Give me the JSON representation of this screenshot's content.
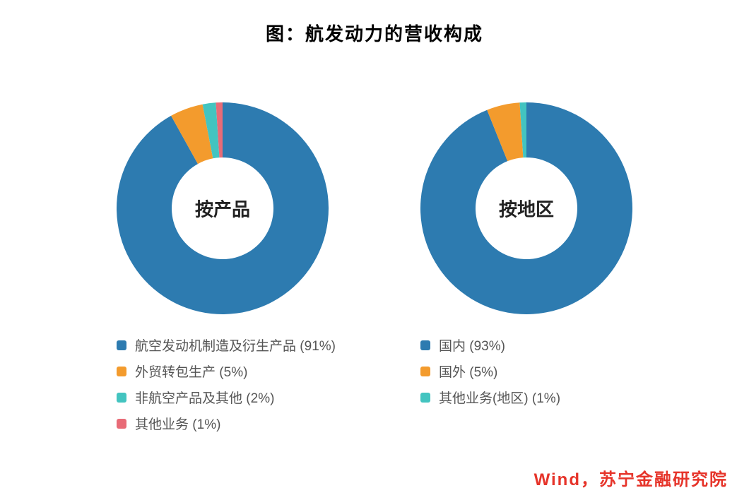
{
  "title": "图：航发动力的营收构成",
  "title_fontsize": 26,
  "background_color": "#ffffff",
  "source": {
    "text": "Wind，苏宁金融研究院",
    "color": "#e6342a",
    "fontsize": 24
  },
  "donut": {
    "outer_radius": 150,
    "inner_radius": 72,
    "start_angle_deg": -90,
    "center_label_fontsize": 26,
    "legend_fontsize": 19
  },
  "charts": [
    {
      "center_label": "按产品",
      "slices": [
        {
          "label": "航空发动机制造及衍生产品",
          "value": 91,
          "color": "#2d7bb0"
        },
        {
          "label": "外贸转包生产",
          "value": 5,
          "color": "#f39b2d"
        },
        {
          "label": "非航空产品及其他",
          "value": 2,
          "color": "#43c4c0"
        },
        {
          "label": "其他业务",
          "value": 1,
          "color": "#e86b77"
        }
      ]
    },
    {
      "center_label": "按地区",
      "slices": [
        {
          "label": "国内",
          "value": 93,
          "color": "#2d7bb0"
        },
        {
          "label": "国外",
          "value": 5,
          "color": "#f39b2d"
        },
        {
          "label": "其他业务(地区)",
          "value": 1,
          "color": "#43c4c0"
        }
      ]
    }
  ]
}
